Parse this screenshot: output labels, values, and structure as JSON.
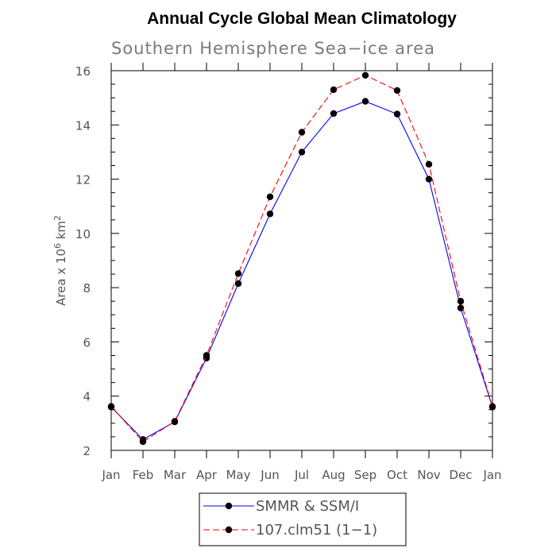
{
  "chart_data": {
    "type": "line",
    "title": "Annual Cycle Global Mean Climatology",
    "subtitle": "Southern Hemisphere Sea−ice area",
    "ylabel": "Area x 10^6 km^2",
    "ylabel_parts": {
      "base": "Area x 10",
      "exp1": "6",
      "mid": " km",
      "exp2": "2"
    },
    "categories": [
      "Jan",
      "Feb",
      "Mar",
      "Apr",
      "May",
      "Jun",
      "Jul",
      "Aug",
      "Sep",
      "Oct",
      "Nov",
      "Dec",
      "Jan"
    ],
    "ylim": [
      2,
      16
    ],
    "yticks": [
      2,
      4,
      6,
      8,
      10,
      12,
      14,
      16
    ],
    "grid": false,
    "legend_position": "bottom",
    "series": [
      {
        "name": "SMMR & SSM/I",
        "color": "#0000ff",
        "dash": "solid",
        "values": [
          3.6,
          2.4,
          3.05,
          5.4,
          8.15,
          10.72,
          13.0,
          14.42,
          14.87,
          14.4,
          12.0,
          7.25,
          3.6
        ]
      },
      {
        "name": "107.clm51 (1−1)",
        "color": "#ff0000",
        "dash": "dashed",
        "values": [
          3.62,
          2.32,
          3.07,
          5.5,
          8.52,
          11.35,
          13.73,
          15.3,
          15.83,
          15.27,
          12.55,
          7.5,
          3.62
        ]
      }
    ]
  }
}
